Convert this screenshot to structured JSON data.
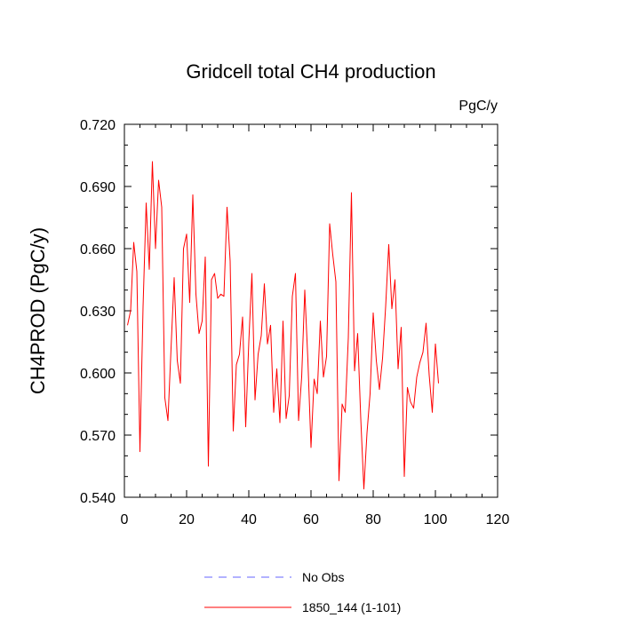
{
  "chart_data": {
    "type": "line",
    "title": "Gridcell total CH4 production",
    "units": "PgC/y",
    "ylabel": "CH4PROD  (PgC/y)",
    "xlabel": "",
    "xlim": [
      0,
      120
    ],
    "ylim": [
      0.54,
      0.72
    ],
    "x_ticks": [
      0,
      20,
      40,
      60,
      80,
      100,
      120
    ],
    "x_tick_labels": [
      "0",
      "20",
      "40",
      "60",
      "80",
      "100",
      "120"
    ],
    "y_ticks": [
      0.54,
      0.57,
      0.6,
      0.63,
      0.66,
      0.69,
      0.72
    ],
    "y_tick_labels": [
      "0.540",
      "0.570",
      "0.600",
      "0.630",
      "0.660",
      "0.690",
      "0.720"
    ],
    "legend": [
      {
        "label": "No Obs",
        "color": "#6666ff",
        "style": "dashed"
      },
      {
        "label": "1850_144 (1-101)",
        "color": "#ff0000",
        "style": "solid"
      }
    ],
    "series": [
      {
        "name": "1850_144 (1-101)",
        "color": "#ff0000",
        "x": [
          1,
          2,
          3,
          4,
          5,
          6,
          7,
          8,
          9,
          10,
          11,
          12,
          13,
          14,
          15,
          16,
          17,
          18,
          19,
          20,
          21,
          22,
          23,
          24,
          25,
          26,
          27,
          28,
          29,
          30,
          31,
          32,
          33,
          34,
          35,
          36,
          37,
          38,
          39,
          40,
          41,
          42,
          43,
          44,
          45,
          46,
          47,
          48,
          49,
          50,
          51,
          52,
          53,
          54,
          55,
          56,
          57,
          58,
          59,
          60,
          61,
          62,
          63,
          64,
          65,
          66,
          67,
          68,
          69,
          70,
          71,
          72,
          73,
          74,
          75,
          76,
          77,
          78,
          79,
          80,
          81,
          82,
          83,
          84,
          85,
          86,
          87,
          88,
          89,
          90,
          91,
          92,
          93,
          94,
          95,
          96,
          97,
          98,
          99,
          100,
          101
        ],
        "values": [
          0.623,
          0.63,
          0.663,
          0.649,
          0.562,
          0.632,
          0.682,
          0.65,
          0.702,
          0.66,
          0.693,
          0.68,
          0.588,
          0.577,
          0.612,
          0.646,
          0.606,
          0.595,
          0.66,
          0.667,
          0.634,
          0.686,
          0.638,
          0.619,
          0.625,
          0.656,
          0.555,
          0.645,
          0.648,
          0.636,
          0.638,
          0.637,
          0.68,
          0.654,
          0.572,
          0.604,
          0.609,
          0.627,
          0.574,
          0.615,
          0.648,
          0.587,
          0.609,
          0.618,
          0.643,
          0.614,
          0.623,
          0.581,
          0.602,
          0.576,
          0.625,
          0.578,
          0.589,
          0.637,
          0.648,
          0.577,
          0.598,
          0.64,
          0.606,
          0.564,
          0.597,
          0.59,
          0.625,
          0.598,
          0.608,
          0.672,
          0.657,
          0.644,
          0.548,
          0.585,
          0.581,
          0.617,
          0.687,
          0.601,
          0.619,
          0.578,
          0.544,
          0.571,
          0.59,
          0.629,
          0.606,
          0.592,
          0.607,
          0.632,
          0.662,
          0.631,
          0.645,
          0.602,
          0.622,
          0.55,
          0.593,
          0.586,
          0.583,
          0.598,
          0.605,
          0.61,
          0.624,
          0.599,
          0.581,
          0.614,
          0.595
        ]
      }
    ]
  }
}
